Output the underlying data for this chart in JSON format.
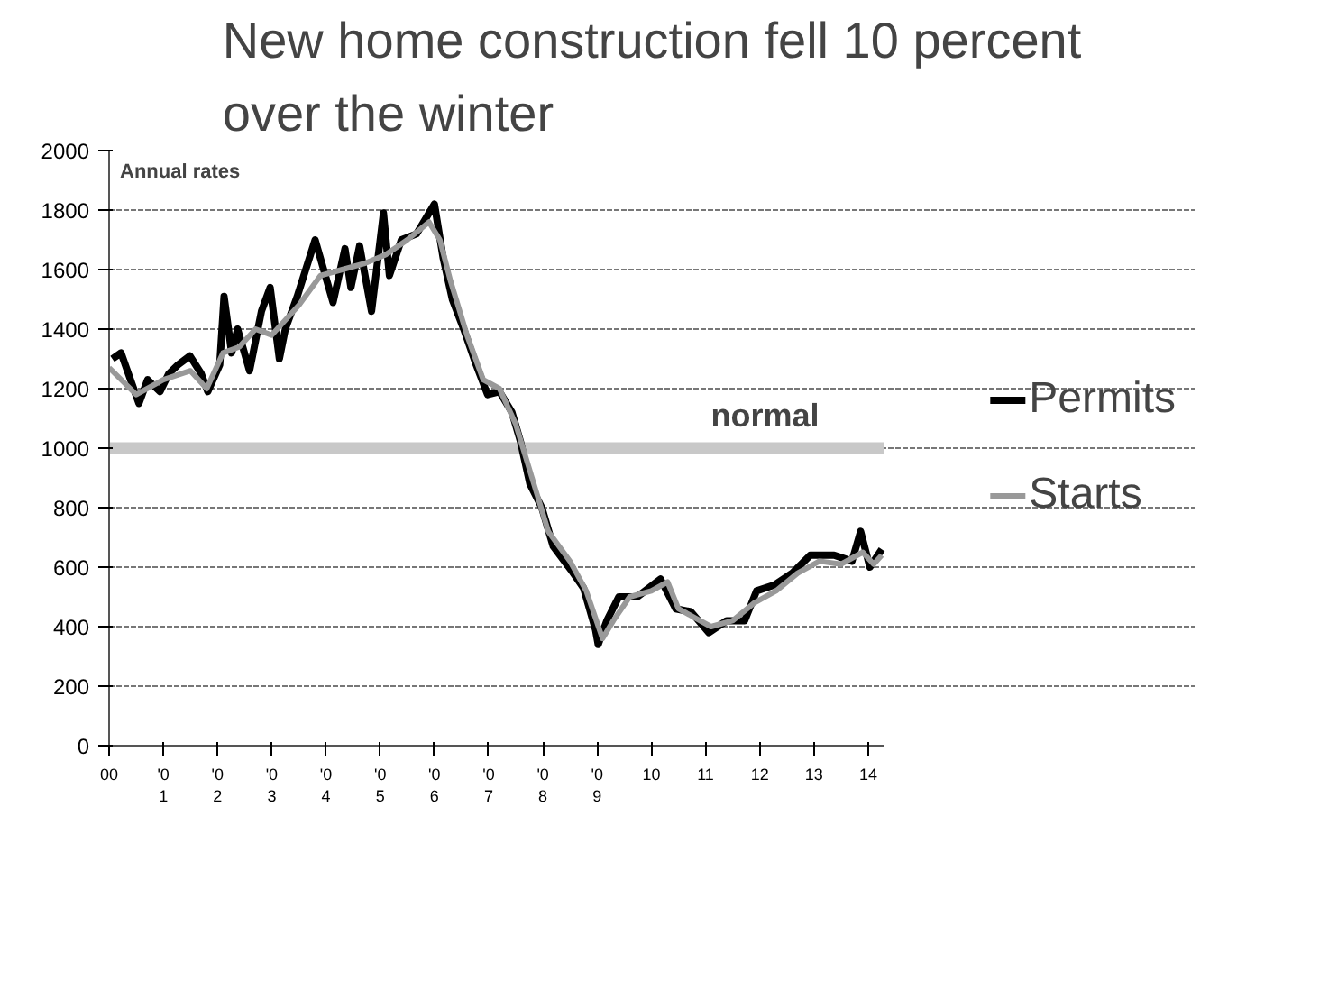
{
  "chart_data": {
    "type": "line",
    "title": "New home construction fell 10 percent\nover the winter",
    "xlim": [
      2000,
      2014.3
    ],
    "ylim": [
      0,
      2000
    ],
    "xticks": [
      {
        "value": 2000,
        "label": "00"
      },
      {
        "value": 2001,
        "label": "'0\n1"
      },
      {
        "value": 2002,
        "label": "'0\n2"
      },
      {
        "value": 2003,
        "label": "'0\n3"
      },
      {
        "value": 2004,
        "label": "'0\n4"
      },
      {
        "value": 2005,
        "label": "'0\n5"
      },
      {
        "value": 2006,
        "label": "'0\n6"
      },
      {
        "value": 2007,
        "label": "'0\n7"
      },
      {
        "value": 2008,
        "label": "'0\n8"
      },
      {
        "value": 2009,
        "label": "'0\n9"
      },
      {
        "value": 2010,
        "label": "10"
      },
      {
        "value": 2011,
        "label": "11"
      },
      {
        "value": 2012,
        "label": "12"
      },
      {
        "value": 2013,
        "label": "13"
      },
      {
        "value": 2014,
        "label": "14"
      }
    ],
    "yticks": [
      0,
      200,
      400,
      600,
      800,
      1000,
      1200,
      1400,
      1600,
      1800,
      2000
    ],
    "grid": "y",
    "legend": "right",
    "series": [
      {
        "name": "Permits",
        "color": "#000000",
        "x": [
          2000.06,
          2000.22,
          2000.55,
          2000.71,
          2000.94,
          2001.1,
          2001.27,
          2001.49,
          2001.7,
          2001.82,
          2002.04,
          2002.12,
          2002.26,
          2002.37,
          2002.59,
          2002.81,
          2002.97,
          2003.14,
          2003.25,
          2003.47,
          2003.8,
          2004.13,
          2004.35,
          2004.46,
          2004.62,
          2004.84,
          2005.06,
          2005.17,
          2005.39,
          2005.67,
          2006.0,
          2006.16,
          2006.33,
          2006.54,
          2006.77,
          2006.98,
          2007.2,
          2007.43,
          2007.59,
          2007.76,
          2007.98,
          2008.19,
          2008.52,
          2008.75,
          2008.97,
          2009.02,
          2009.18,
          2009.4,
          2009.74,
          2010.17,
          2010.45,
          2010.73,
          2011.06,
          2011.39,
          2011.72,
          2011.94,
          2012.27,
          2012.6,
          2012.93,
          2013.37,
          2013.7,
          2013.86,
          2014.03,
          2014.25
        ],
        "values": [
          1300,
          1320,
          1150,
          1230,
          1190,
          1250,
          1280,
          1310,
          1250,
          1190,
          1280,
          1510,
          1320,
          1400,
          1260,
          1460,
          1540,
          1300,
          1400,
          1510,
          1700,
          1490,
          1670,
          1540,
          1680,
          1460,
          1790,
          1580,
          1700,
          1720,
          1820,
          1640,
          1500,
          1400,
          1280,
          1180,
          1190,
          1120,
          1020,
          880,
          800,
          670,
          590,
          530,
          390,
          340,
          420,
          500,
          500,
          560,
          460,
          450,
          380,
          420,
          420,
          520,
          540,
          580,
          640,
          640,
          620,
          720,
          600,
          660
        ]
      },
      {
        "name": "Starts",
        "color": "#999999",
        "x": [
          2000.0,
          2000.5,
          2001.0,
          2001.5,
          2001.8,
          2002.1,
          2002.4,
          2002.7,
          2003.0,
          2003.5,
          2003.9,
          2004.3,
          2004.7,
          2005.1,
          2005.5,
          2005.9,
          2006.1,
          2006.3,
          2006.6,
          2006.9,
          2007.2,
          2007.5,
          2007.8,
          2008.1,
          2008.5,
          2008.8,
          2009.1,
          2009.3,
          2009.6,
          2010.0,
          2010.3,
          2010.5,
          2010.8,
          2011.1,
          2011.5,
          2011.9,
          2012.3,
          2012.7,
          2013.1,
          2013.5,
          2013.9,
          2014.1,
          2014.25
        ],
        "values": [
          1270,
          1180,
          1230,
          1260,
          1200,
          1320,
          1340,
          1400,
          1380,
          1480,
          1580,
          1600,
          1620,
          1650,
          1700,
          1760,
          1700,
          1560,
          1380,
          1230,
          1200,
          1080,
          900,
          720,
          620,
          520,
          360,
          420,
          500,
          520,
          550,
          460,
          430,
          400,
          420,
          480,
          520,
          580,
          620,
          610,
          650,
          610,
          640
        ]
      }
    ],
    "bands": [
      {
        "axis": "y",
        "from": 980,
        "to": 1020,
        "label": "normal",
        "color": "#c8c8c8"
      }
    ],
    "annotations": [
      "Annual rates"
    ]
  }
}
